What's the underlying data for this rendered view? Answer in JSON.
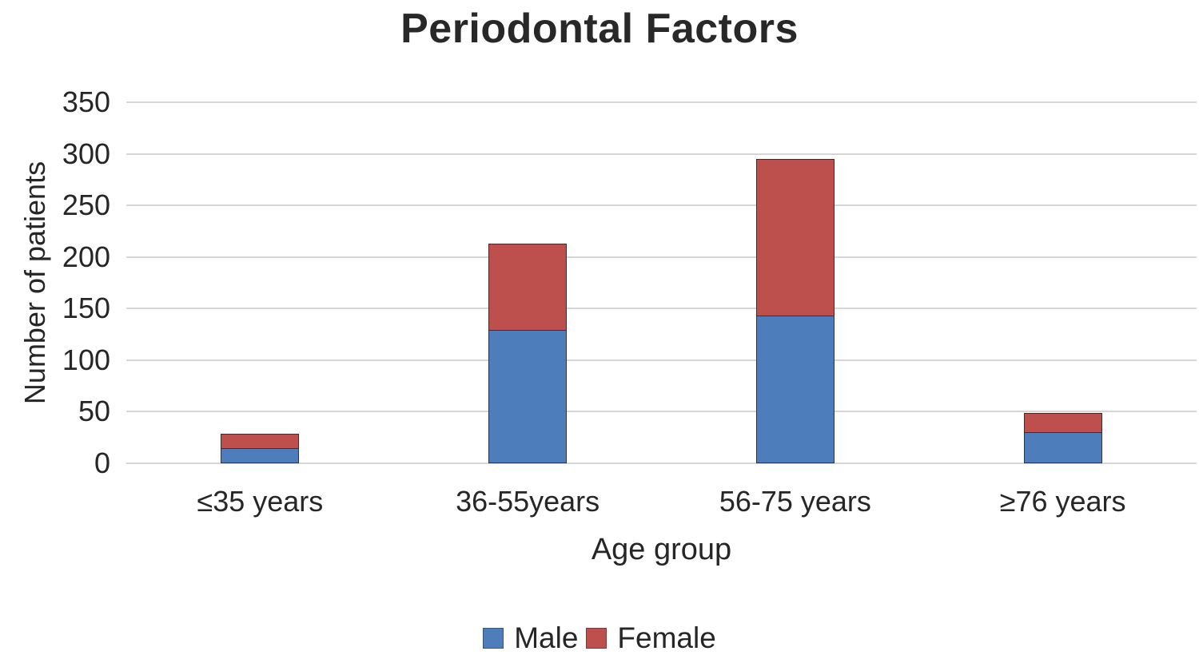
{
  "chart_data": {
    "type": "bar",
    "stacked": true,
    "title": "Periodontal Factors",
    "categories": [
      "≤35 years",
      "36-55years",
      "56-75 years",
      "≥76 years"
    ],
    "series": [
      {
        "name": "Male",
        "color": "#4e7dbc",
        "values": [
          15,
          129,
          143,
          30
        ]
      },
      {
        "name": "Female",
        "color": "#bd4f4d",
        "values": [
          14,
          84,
          152,
          19
        ]
      }
    ],
    "xlabel": "Age group",
    "ylabel": "Number of patients",
    "ylim": [
      0,
      350
    ],
    "ytick_step": 50,
    "yticks": [
      0,
      50,
      100,
      150,
      200,
      250,
      300,
      350
    ],
    "grid": true,
    "grid_color": "#d6d6d6",
    "legend_position": "bottom"
  }
}
